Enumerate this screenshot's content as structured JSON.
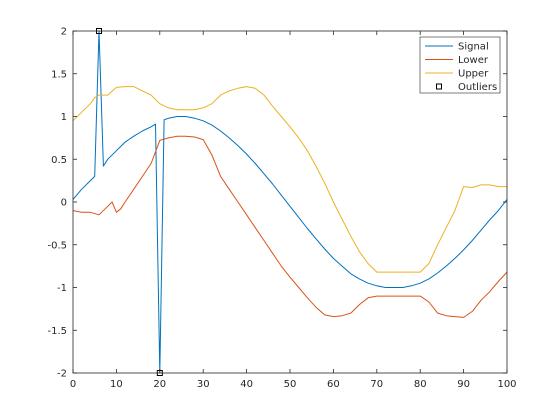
{
  "chart_data": {
    "type": "line",
    "title": "",
    "xlabel": "",
    "ylabel": "",
    "xlim": [
      0,
      100
    ],
    "ylim": [
      -2,
      2
    ],
    "xticks": [
      0,
      10,
      20,
      30,
      40,
      50,
      60,
      70,
      80,
      90,
      100
    ],
    "yticks": [
      -2,
      -1.5,
      -1,
      -0.5,
      0,
      0.5,
      1,
      1.5,
      2
    ],
    "grid": false,
    "legend_position": "top-right",
    "series": [
      {
        "name": "Signal",
        "color": "#0072BD",
        "x": [
          0,
          2,
          4,
          5,
          6,
          7,
          8,
          10,
          12,
          14,
          16,
          18,
          19,
          20,
          21,
          22,
          24,
          26,
          28,
          30,
          32,
          34,
          36,
          38,
          40,
          42,
          44,
          46,
          48,
          50,
          52,
          54,
          56,
          58,
          60,
          62,
          64,
          66,
          68,
          70,
          72,
          74,
          75,
          76,
          78,
          80,
          82,
          84,
          86,
          88,
          90,
          92,
          94,
          96,
          98,
          100
        ],
        "y": [
          0.03,
          0.15,
          0.25,
          0.3,
          2.0,
          0.42,
          0.5,
          0.6,
          0.7,
          0.77,
          0.83,
          0.88,
          0.91,
          -2.0,
          0.96,
          0.98,
          1.0,
          1.0,
          0.98,
          0.95,
          0.9,
          0.83,
          0.75,
          0.66,
          0.56,
          0.45,
          0.33,
          0.21,
          0.08,
          -0.05,
          -0.18,
          -0.31,
          -0.43,
          -0.55,
          -0.66,
          -0.75,
          -0.84,
          -0.9,
          -0.95,
          -0.98,
          -1.0,
          -1.0,
          -1.0,
          -1.0,
          -0.98,
          -0.95,
          -0.9,
          -0.83,
          -0.75,
          -0.66,
          -0.56,
          -0.45,
          -0.33,
          -0.21,
          -0.1,
          0.03
        ]
      },
      {
        "name": "Lower",
        "color": "#D95319",
        "x": [
          0,
          2,
          4,
          6,
          8,
          9,
          10,
          11,
          12,
          14,
          16,
          18,
          20,
          22,
          24,
          26,
          28,
          30,
          32,
          34,
          36,
          38,
          40,
          42,
          44,
          46,
          48,
          50,
          52,
          54,
          56,
          58,
          60,
          62,
          64,
          66,
          68,
          70,
          72,
          74,
          76,
          78,
          80,
          82,
          84,
          86,
          88,
          90,
          92,
          94,
          96,
          98,
          100
        ],
        "y": [
          -0.1,
          -0.12,
          -0.12,
          -0.15,
          -0.05,
          0.0,
          -0.12,
          -0.08,
          0.0,
          0.15,
          0.3,
          0.45,
          0.72,
          0.75,
          0.77,
          0.77,
          0.76,
          0.73,
          0.55,
          0.3,
          0.15,
          0.0,
          -0.15,
          -0.3,
          -0.45,
          -0.6,
          -0.75,
          -0.88,
          -1.0,
          -1.12,
          -1.23,
          -1.32,
          -1.34,
          -1.33,
          -1.3,
          -1.2,
          -1.12,
          -1.1,
          -1.1,
          -1.1,
          -1.1,
          -1.1,
          -1.1,
          -1.17,
          -1.3,
          -1.33,
          -1.34,
          -1.35,
          -1.28,
          -1.15,
          -1.05,
          -0.93,
          -0.82
        ]
      },
      {
        "name": "Upper",
        "color": "#EDB120",
        "x": [
          0,
          2,
          4,
          5,
          6,
          8,
          10,
          12,
          14,
          16,
          18,
          20,
          22,
          24,
          26,
          28,
          30,
          32,
          34,
          36,
          38,
          40,
          42,
          44,
          46,
          48,
          50,
          52,
          54,
          56,
          58,
          60,
          62,
          64,
          66,
          68,
          70,
          72,
          74,
          76,
          78,
          80,
          82,
          84,
          86,
          88,
          90,
          92,
          94,
          96,
          98,
          100
        ],
        "y": [
          0.95,
          1.05,
          1.15,
          1.22,
          1.25,
          1.25,
          1.34,
          1.35,
          1.35,
          1.3,
          1.25,
          1.15,
          1.1,
          1.08,
          1.08,
          1.08,
          1.1,
          1.15,
          1.25,
          1.3,
          1.33,
          1.35,
          1.33,
          1.25,
          1.12,
          1.0,
          0.88,
          0.75,
          0.6,
          0.42,
          0.22,
          0.0,
          -0.2,
          -0.4,
          -0.58,
          -0.72,
          -0.82,
          -0.82,
          -0.82,
          -0.82,
          -0.82,
          -0.82,
          -0.72,
          -0.5,
          -0.3,
          -0.1,
          0.18,
          0.17,
          0.2,
          0.2,
          0.18,
          0.18
        ]
      }
    ],
    "outliers": {
      "name": "Outliers",
      "marker": "square",
      "color": "#000000",
      "x": [
        6,
        20
      ],
      "y": [
        2.0,
        -2.0
      ]
    }
  }
}
